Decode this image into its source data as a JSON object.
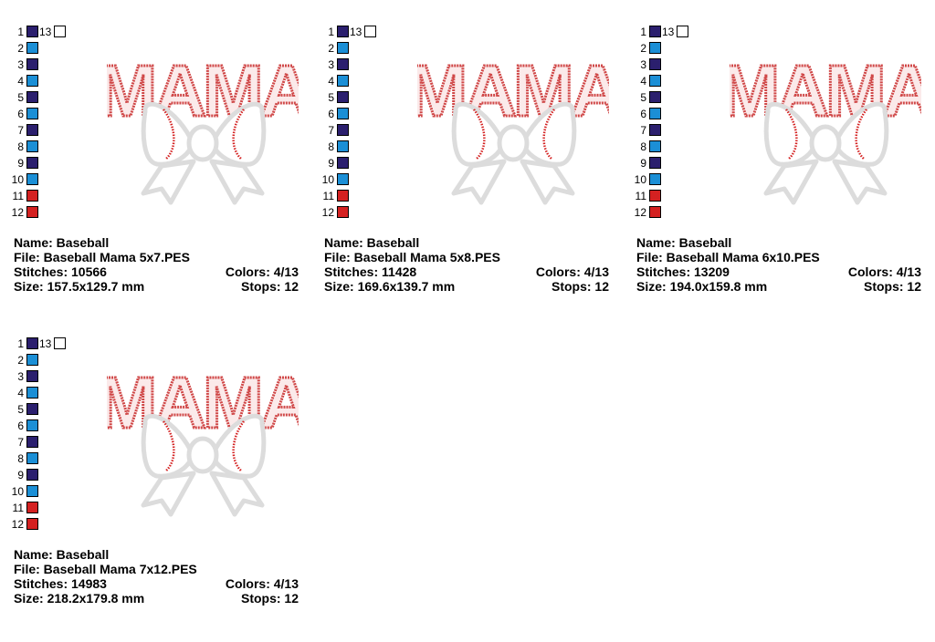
{
  "palette": {
    "navy": "#2b1f6e",
    "blue": "#1b8fd6",
    "red": "#d42121",
    "white": "#ffffff"
  },
  "swatches": [
    {
      "num": "1",
      "color": "navy"
    },
    {
      "num": "2",
      "color": "blue"
    },
    {
      "num": "3",
      "color": "navy"
    },
    {
      "num": "4",
      "color": "blue"
    },
    {
      "num": "5",
      "color": "navy"
    },
    {
      "num": "6",
      "color": "blue"
    },
    {
      "num": "7",
      "color": "navy"
    },
    {
      "num": "8",
      "color": "blue"
    },
    {
      "num": "9",
      "color": "navy"
    },
    {
      "num": "10",
      "color": "blue"
    },
    {
      "num": "11",
      "color": "red"
    },
    {
      "num": "12",
      "color": "red"
    }
  ],
  "extra_swatch": {
    "num": "13",
    "color": "white"
  },
  "design_text": "MAMA",
  "cards": [
    {
      "name": "Name: Baseball",
      "file": "File: Baseball Mama 5x7.PES",
      "stitches": "Stitches: 10566",
      "colors": "Colors: 4/13",
      "size": "Size: 157.5x129.7 mm",
      "stops": "Stops: 12"
    },
    {
      "name": "Name: Baseball",
      "file": "File: Baseball Mama 5x8.PES",
      "stitches": "Stitches: 11428",
      "colors": "Colors: 4/13",
      "size": "Size: 169.6x139.7 mm",
      "stops": "Stops: 12"
    },
    {
      "name": "Name: Baseball",
      "file": "File: Baseball Mama 6x10.PES",
      "stitches": "Stitches: 13209",
      "colors": "Colors: 4/13",
      "size": "Size: 194.0x159.8 mm",
      "stops": "Stops: 12"
    },
    {
      "name": "Name: Baseball",
      "file": "File: Baseball Mama 7x12.PES",
      "stitches": "Stitches: 14983",
      "colors": "Colors: 4/13",
      "size": "Size: 218.2x179.8 mm",
      "stops": "Stops: 12"
    }
  ]
}
